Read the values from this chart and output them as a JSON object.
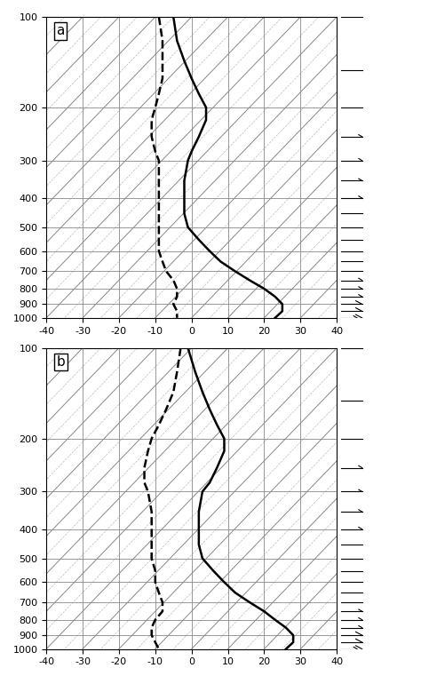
{
  "xlim": [
    -40,
    40
  ],
  "ylim_top": 100,
  "ylim_bottom": 1000,
  "yticks": [
    100,
    200,
    300,
    400,
    500,
    600,
    700,
    800,
    900,
    1000
  ],
  "xticks": [
    -40,
    -30,
    -20,
    -10,
    0,
    10,
    20,
    30,
    40
  ],
  "panel_labels": [
    "a",
    "b"
  ],
  "isotherm_color": "#888888",
  "isotherm_lw": 0.7,
  "moist_adiabat_color": "#bbbbbb",
  "moist_adiabat_lw": 0.5,
  "profile_lw": 1.8,
  "panel_a_temp_pressure": [
    100,
    120,
    140,
    160,
    180,
    200,
    220,
    250,
    280,
    300,
    350,
    400,
    450,
    500,
    550,
    600,
    650,
    700,
    750,
    800,
    850,
    900,
    950,
    1000
  ],
  "panel_a_temp_values": [
    -5,
    -4,
    -2,
    0,
    2,
    4,
    4,
    2,
    0,
    -1,
    -2,
    -2,
    -2,
    -1,
    2,
    5,
    8,
    12,
    16,
    20,
    23,
    25,
    25,
    23
  ],
  "panel_a_dewp_pressure": [
    100,
    120,
    140,
    160,
    180,
    200,
    220,
    250,
    280,
    300,
    350,
    400,
    450,
    500,
    550,
    600,
    650,
    700,
    750,
    800,
    850,
    900,
    950,
    1000
  ],
  "panel_a_dewp_values": [
    -9,
    -8,
    -8,
    -8,
    -9,
    -10,
    -11,
    -11,
    -10,
    -9,
    -9,
    -9,
    -9,
    -9,
    -9,
    -9,
    -8,
    -7,
    -5,
    -4,
    -4,
    -5,
    -4,
    -4
  ],
  "panel_b_temp_pressure": [
    100,
    120,
    140,
    160,
    180,
    200,
    220,
    250,
    280,
    300,
    350,
    400,
    450,
    500,
    550,
    600,
    650,
    700,
    750,
    800,
    850,
    900,
    950,
    1000
  ],
  "panel_b_temp_values": [
    -1,
    1,
    3,
    5,
    7,
    9,
    9,
    7,
    5,
    3,
    2,
    2,
    2,
    3,
    6,
    9,
    12,
    16,
    20,
    23,
    26,
    28,
    28,
    26
  ],
  "panel_b_dewp_pressure": [
    100,
    120,
    140,
    160,
    180,
    200,
    220,
    250,
    280,
    300,
    350,
    400,
    450,
    500,
    550,
    600,
    650,
    700,
    750,
    800,
    850,
    900,
    950,
    1000
  ],
  "panel_b_dewp_values": [
    -3,
    -4,
    -5,
    -7,
    -9,
    -11,
    -12,
    -13,
    -13,
    -12,
    -11,
    -11,
    -11,
    -11,
    -10,
    -10,
    -9,
    -8,
    -8,
    -10,
    -11,
    -11,
    -10,
    -9
  ],
  "barb_a_pressure": [
    100,
    150,
    200,
    250,
    300,
    350,
    400,
    450,
    500,
    550,
    600,
    650,
    700,
    750,
    800,
    850,
    900,
    950,
    1000
  ],
  "barb_a_u": [
    2,
    3,
    4,
    5,
    5,
    5,
    5,
    4,
    4,
    3,
    3,
    3,
    4,
    5,
    6,
    7,
    8,
    10,
    12
  ],
  "barb_a_v": [
    0,
    1,
    1,
    2,
    2,
    2,
    2,
    2,
    2,
    1,
    1,
    1,
    2,
    3,
    4,
    5,
    6,
    8,
    10
  ],
  "barb_b_pressure": [
    100,
    150,
    200,
    250,
    300,
    350,
    400,
    450,
    500,
    550,
    600,
    650,
    700,
    750,
    800,
    850,
    900,
    950,
    1000
  ],
  "barb_b_u": [
    2,
    3,
    4,
    5,
    5,
    5,
    5,
    4,
    4,
    3,
    3,
    3,
    4,
    5,
    6,
    7,
    8,
    10,
    12
  ],
  "barb_b_v": [
    0,
    1,
    1,
    2,
    2,
    2,
    2,
    2,
    2,
    1,
    1,
    1,
    2,
    3,
    4,
    5,
    6,
    8,
    10
  ]
}
